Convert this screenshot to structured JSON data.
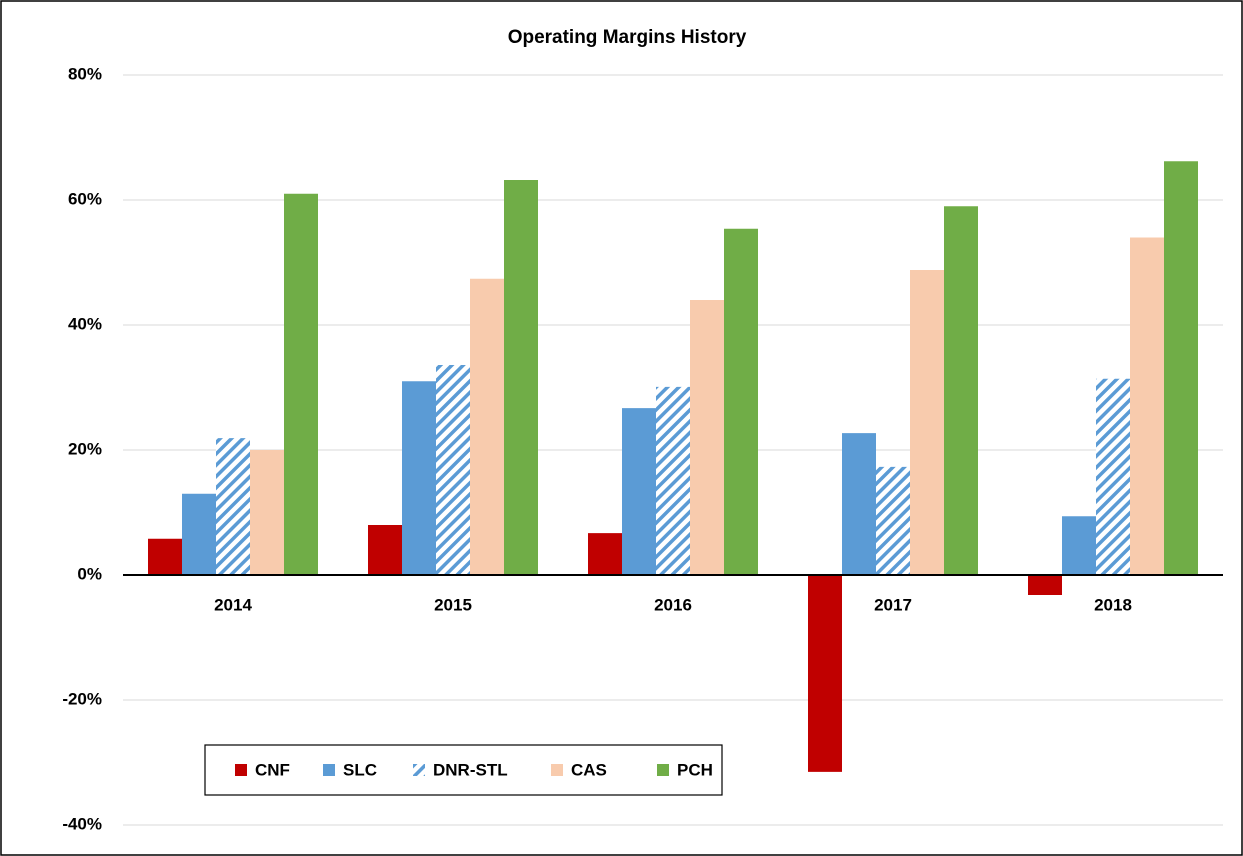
{
  "chart_data": {
    "type": "bar",
    "title": "Operating Margins History",
    "categories": [
      "2014",
      "2015",
      "2016",
      "2017",
      "2018"
    ],
    "series": [
      {
        "name": "CNF",
        "color": "#c00000",
        "values": [
          5.8,
          8.0,
          6.7,
          -31.5,
          -3.2
        ]
      },
      {
        "name": "SLC",
        "color": "#5b9bd5",
        "values": [
          13.0,
          31.0,
          26.7,
          22.7,
          9.4
        ]
      },
      {
        "name": "DNR-STL",
        "color": "#5b9bd5",
        "hatch": true,
        "values": [
          21.9,
          33.6,
          30.1,
          17.3,
          31.4
        ]
      },
      {
        "name": "CAS",
        "color": "#f8cbad",
        "values": [
          20.0,
          47.4,
          44.0,
          48.8,
          54.0
        ]
      },
      {
        "name": "PCH",
        "color": "#70ad47",
        "values": [
          61.0,
          63.2,
          55.4,
          59.0,
          66.2
        ]
      }
    ],
    "ylim": [
      -40,
      80
    ],
    "yticks": [
      {
        "value": -40,
        "label": "-40%"
      },
      {
        "value": -20,
        "label": "-20%"
      },
      {
        "value": 0,
        "label": "0%"
      },
      {
        "value": 20,
        "label": "20%"
      },
      {
        "value": 40,
        "label": "40%"
      },
      {
        "value": 60,
        "label": "60%"
      },
      {
        "value": 80,
        "label": "80%"
      }
    ],
    "grid": true,
    "legend": "bottom-left"
  }
}
